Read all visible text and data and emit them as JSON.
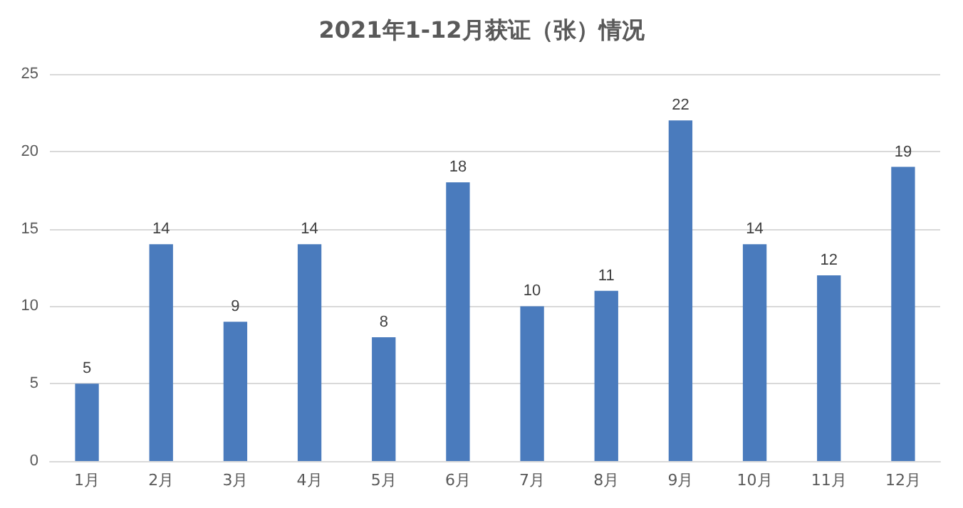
{
  "chart_data": {
    "type": "bar",
    "title": "2021年1-12月获证（张）情况",
    "categories": [
      "1月",
      "2月",
      "3月",
      "4月",
      "5月",
      "6月",
      "7月",
      "8月",
      "9月",
      "10月",
      "11月",
      "12月"
    ],
    "values": [
      5,
      14,
      9,
      14,
      8,
      18,
      10,
      11,
      22,
      14,
      12,
      19
    ],
    "color": "#4a7bbd",
    "ylim": [
      0,
      25
    ],
    "yticks": [
      0,
      5,
      10,
      15,
      20,
      25
    ],
    "grid": "y",
    "data_labels": true
  }
}
